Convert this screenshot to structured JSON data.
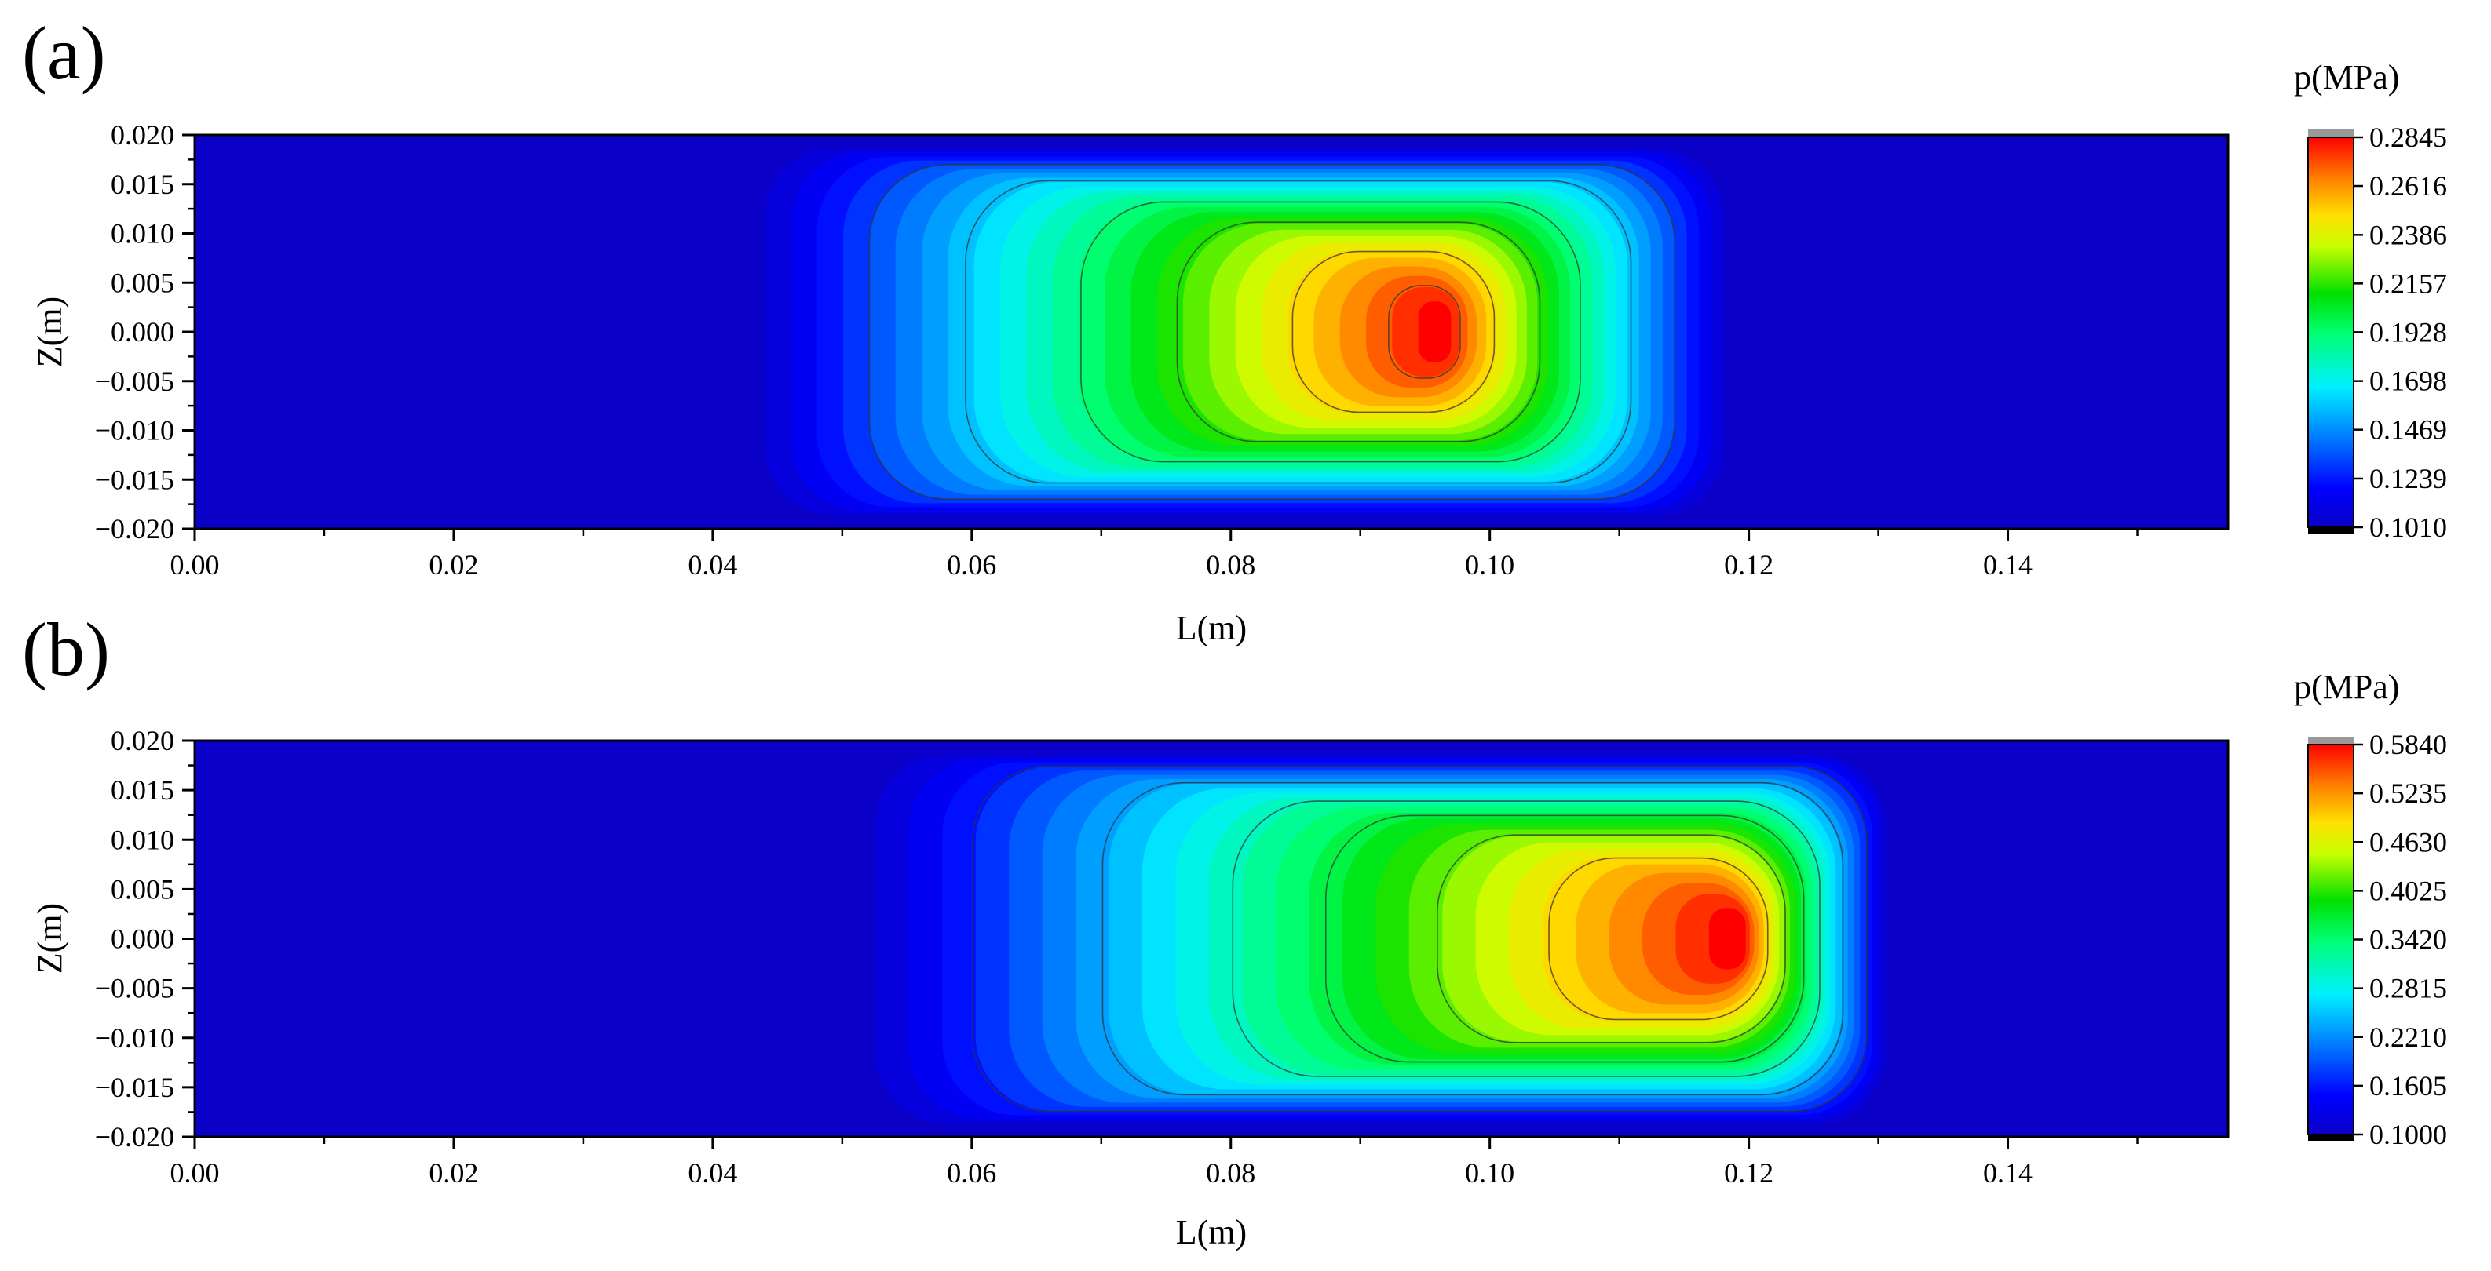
{
  "chart_data": [
    {
      "type": "heatmap",
      "panel_label": "(a)",
      "xlabel": "L(m)",
      "ylabel": "Z(m)",
      "xlim": [
        0,
        0.157
      ],
      "ylim": [
        -0.02,
        0.02
      ],
      "x_ticks": [
        "0.00",
        "0.02",
        "0.04",
        "0.06",
        "0.08",
        "0.10",
        "0.12",
        "0.14"
      ],
      "x_tick_values": [
        0,
        0.02,
        0.04,
        0.06,
        0.08,
        0.1,
        0.12,
        0.14
      ],
      "y_ticks": [
        "0.020",
        "0.015",
        "0.010",
        "0.005",
        "0.000",
        "−0.005",
        "−0.010",
        "−0.015",
        "−0.020"
      ],
      "y_tick_values": [
        0.02,
        0.015,
        0.01,
        0.005,
        0,
        -0.005,
        -0.01,
        -0.015,
        -0.02
      ],
      "colorbar": {
        "title": "p(MPa)",
        "min": 0.101,
        "max": 0.2845,
        "ticks": [
          "0.2845",
          "0.2616",
          "0.2386",
          "0.2157",
          "0.1928",
          "0.1698",
          "0.1469",
          "0.1239",
          "0.1010"
        ],
        "tick_values": [
          0.2845,
          0.2616,
          0.2386,
          0.2157,
          0.1928,
          0.1698,
          0.1469,
          0.1239,
          0.101
        ]
      },
      "field": {
        "background": 0.101,
        "peak_value": 0.2845,
        "peak_location": [
          0.0965,
          0.0
        ],
        "region_x": [
          0.042,
          0.119
        ],
        "region_z": [
          -0.019,
          0.019
        ],
        "contour_levels": [
          0.135,
          0.16,
          0.19,
          0.215,
          0.245,
          0.27
        ]
      }
    },
    {
      "type": "heatmap",
      "panel_label": "(b)",
      "xlabel": "L(m)",
      "ylabel": "Z(m)",
      "xlim": [
        0,
        0.157
      ],
      "ylim": [
        -0.02,
        0.02
      ],
      "x_ticks": [
        "0.00",
        "0.02",
        "0.04",
        "0.06",
        "0.08",
        "0.10",
        "0.12",
        "0.14"
      ],
      "x_tick_values": [
        0,
        0.02,
        0.04,
        0.06,
        0.08,
        0.1,
        0.12,
        0.14
      ],
      "y_ticks": [
        "0.020",
        "0.015",
        "0.010",
        "0.005",
        "0.000",
        "−0.005",
        "−0.010",
        "−0.015",
        "−0.020"
      ],
      "y_tick_values": [
        0.02,
        0.015,
        0.01,
        0.005,
        0,
        -0.005,
        -0.01,
        -0.015,
        -0.02
      ],
      "colorbar": {
        "title": "p(MPa)",
        "min": 0.1,
        "max": 0.584,
        "ticks": [
          "0.5840",
          "0.5235",
          "0.4630",
          "0.4025",
          "0.3420",
          "0.2815",
          "0.2210",
          "0.1605",
          "0.1000"
        ],
        "tick_values": [
          0.584,
          0.5235,
          0.463,
          0.4025,
          0.342,
          0.2815,
          0.221,
          0.1605,
          0.1
        ]
      },
      "field": {
        "background": 0.1,
        "peak_value": 0.584,
        "peak_location": [
          0.1195,
          0.0
        ],
        "region_x": [
          0.05,
          0.131
        ],
        "region_z": [
          -0.019,
          0.019
        ],
        "contour_levels": [
          0.17,
          0.24,
          0.31,
          0.36,
          0.42,
          0.48
        ]
      }
    }
  ]
}
